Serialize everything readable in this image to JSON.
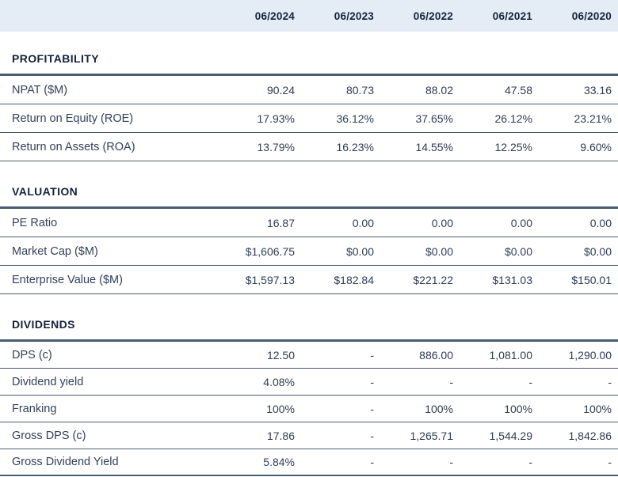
{
  "header": {
    "columns": [
      "06/2024",
      "06/2023",
      "06/2022",
      "06/2021",
      "06/2020"
    ]
  },
  "sections": [
    {
      "title": "PROFITABILITY",
      "rows": [
        {
          "label": "NPAT ($M)",
          "values": [
            "90.24",
            "80.73",
            "88.02",
            "47.58",
            "33.16"
          ]
        },
        {
          "label": "Return on Equity (ROE)",
          "values": [
            "17.93%",
            "36.12%",
            "37.65%",
            "26.12%",
            "23.21%"
          ]
        },
        {
          "label": "Return on Assets (ROA)",
          "values": [
            "13.79%",
            "16.23%",
            "14.55%",
            "12.25%",
            "9.60%"
          ]
        }
      ]
    },
    {
      "title": "VALUATION",
      "rows": [
        {
          "label": "PE Ratio",
          "values": [
            "16.87",
            "0.00",
            "0.00",
            "0.00",
            "0.00"
          ]
        },
        {
          "label": "Market Cap ($M)",
          "values": [
            "$1,606.75",
            "$0.00",
            "$0.00",
            "$0.00",
            "$0.00"
          ]
        },
        {
          "label": "Enterprise Value ($M)",
          "values": [
            "$1,597.13",
            "$182.84",
            "$221.22",
            "$131.03",
            "$150.01"
          ]
        }
      ]
    },
    {
      "title": "DIVIDENDS",
      "rows": [
        {
          "label": "DPS (c)",
          "values": [
            "12.50",
            "-",
            "886.00",
            "1,081.00",
            "1,290.00"
          ]
        },
        {
          "label": "Dividend yield",
          "values": [
            "4.08%",
            "-",
            "-",
            "-",
            "-"
          ]
        },
        {
          "label": "Franking",
          "values": [
            "100%",
            "-",
            "100%",
            "100%",
            "100%"
          ]
        },
        {
          "label": "Gross DPS (c)",
          "values": [
            "17.86",
            "-",
            "1,265.71",
            "1,544.29",
            "1,842.86"
          ]
        },
        {
          "label": "Gross Dividend Yield",
          "values": [
            "5.84%",
            "-",
            "-",
            "-",
            "-"
          ]
        }
      ]
    }
  ],
  "colors": {
    "header_bg": "#e4edf6",
    "heading_text": "#14233c",
    "body_text": "#32415a",
    "border": "#4a5c70"
  }
}
